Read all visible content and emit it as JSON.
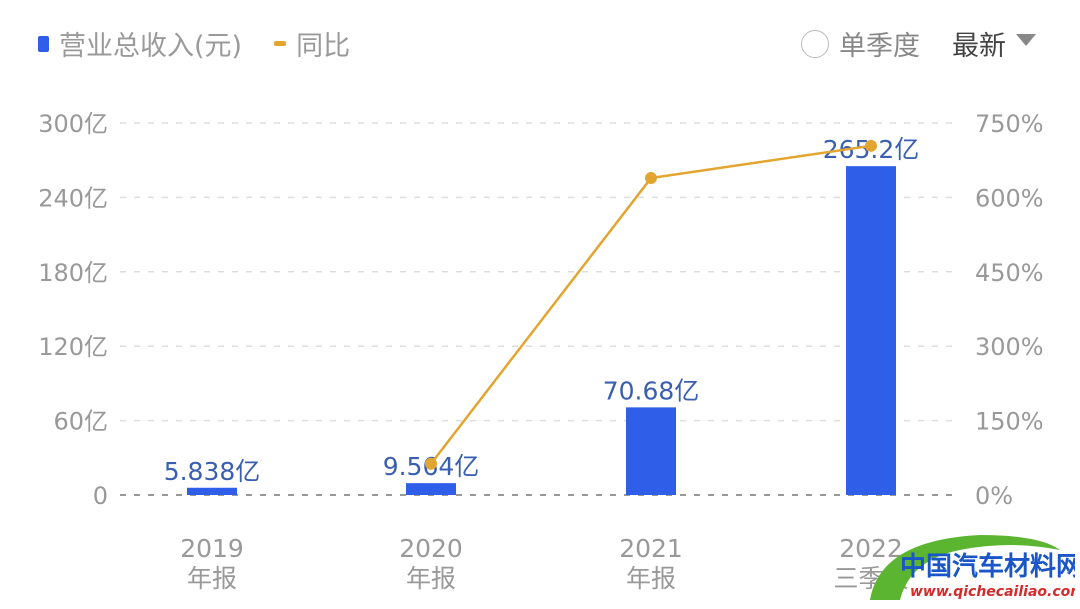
{
  "legend": {
    "bar_label": "营业总收入(元)",
    "line_label": "同比"
  },
  "controls": {
    "single_quarter": "单季度",
    "sort": "最新",
    "single_quarter_checked": false
  },
  "colors": {
    "bar": "#2f5fe8",
    "line": "#e3a52f",
    "label": "#3a5fb0"
  },
  "chart_data": {
    "type": "bar+line",
    "categories": [
      [
        "2019",
        "年报"
      ],
      [
        "2020",
        "年报"
      ],
      [
        "2021",
        "年报"
      ],
      [
        "2022",
        "三季报"
      ]
    ],
    "series": [
      {
        "name": "营业总收入(元)",
        "type": "bar",
        "axis": "left",
        "values": [
          5.838,
          9.564,
          70.68,
          265.2
        ],
        "data_labels": [
          "5.838亿",
          "9.564亿",
          "70.68亿",
          "265.2亿"
        ]
      },
      {
        "name": "同比",
        "type": "line",
        "axis": "right",
        "values": [
          null,
          63,
          639,
          704
        ]
      }
    ],
    "left_axis": {
      "range": [
        0,
        300
      ],
      "ticks": [
        "0",
        "60亿",
        "120亿",
        "180亿",
        "240亿",
        "300亿"
      ]
    },
    "right_axis": {
      "range": [
        0,
        750
      ],
      "ticks": [
        "0%",
        "150%",
        "300%",
        "450%",
        "600%",
        "750%"
      ]
    },
    "grid": true,
    "legend_position": "top-left"
  },
  "watermark": {
    "text": "中国汽车材料网",
    "url": "www.qichecailiao.com"
  }
}
